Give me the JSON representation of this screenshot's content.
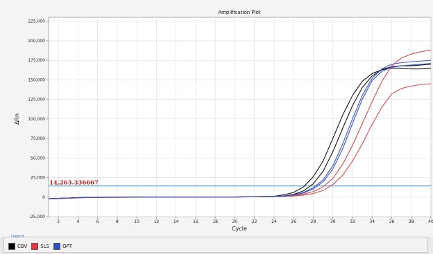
{
  "chart_data": {
    "type": "line",
    "title": "Amplification Plot",
    "xlabel": "Cycle",
    "ylabel": "ΔRn",
    "xlim": [
      1,
      40
    ],
    "ylim": [
      -25000,
      230000
    ],
    "x_ticks": [
      2,
      4,
      6,
      8,
      10,
      12,
      14,
      16,
      18,
      20,
      22,
      24,
      26,
      28,
      30,
      32,
      34,
      36,
      38,
      40
    ],
    "y_ticks": [
      -25000,
      0,
      25000,
      50000,
      75000,
      100000,
      125000,
      150000,
      175000,
      200000,
      225000
    ],
    "y_tick_labels": [
      "-25,000",
      "0",
      "25,000",
      "50,000",
      "75,000",
      "100,000",
      "125,000",
      "150,000",
      "175,000",
      "200,000",
      "225,000"
    ],
    "grid": true,
    "threshold": {
      "value": 14263.336667,
      "label": "14,263.336667",
      "color": "#5aa0d6"
    },
    "legend": {
      "title": "Legend",
      "entries": [
        {
          "label": "CBV",
          "color": "#000000"
        },
        {
          "label": "SLS",
          "color": "#e23a3a"
        },
        {
          "label": "OPT",
          "color": "#2b4fc6"
        }
      ]
    },
    "series": [
      {
        "group": "CBV",
        "color": "#111111",
        "x": [
          1,
          5,
          10,
          15,
          20,
          24,
          25,
          26,
          27,
          28,
          29,
          30,
          31,
          32,
          33,
          34,
          35,
          36,
          37,
          38,
          39,
          40
        ],
        "values": [
          -2000,
          -300,
          0,
          0,
          200,
          1000,
          3000,
          6000,
          13000,
          26000,
          46000,
          75000,
          105000,
          130000,
          148000,
          158000,
          163000,
          165000,
          165000,
          164000,
          164000,
          165000
        ]
      },
      {
        "group": "CBV",
        "color": "#111111",
        "x": [
          1,
          5,
          10,
          15,
          20,
          24,
          25,
          26,
          27,
          28,
          29,
          30,
          31,
          32,
          33,
          34,
          35,
          36,
          37,
          38,
          39,
          40
        ],
        "values": [
          -2000,
          -300,
          0,
          0,
          200,
          600,
          1500,
          3500,
          8000,
          17000,
          33000,
          58000,
          88000,
          117000,
          140000,
          155000,
          163000,
          167000,
          168000,
          168000,
          169000,
          170000
        ]
      },
      {
        "group": "SLS",
        "color": "#d84a4a",
        "x": [
          1,
          5,
          10,
          15,
          20,
          25,
          26,
          27,
          28,
          29,
          30,
          31,
          32,
          33,
          34,
          35,
          36,
          37,
          38,
          39,
          40
        ],
        "values": [
          -2500,
          -500,
          -200,
          -100,
          100,
          1000,
          2000,
          3800,
          7000,
          13000,
          24000,
          42000,
          66000,
          94000,
          122000,
          148000,
          168000,
          178000,
          183000,
          186000,
          188000
        ]
      },
      {
        "group": "SLS",
        "color": "#d84a4a",
        "x": [
          1,
          5,
          10,
          15,
          20,
          25,
          26,
          27,
          28,
          29,
          30,
          31,
          32,
          33,
          34,
          35,
          36,
          37,
          38,
          39,
          40
        ],
        "values": [
          -2500,
          -500,
          -200,
          -100,
          100,
          800,
          1400,
          2500,
          4500,
          8500,
          16000,
          28000,
          46000,
          68000,
          93000,
          115000,
          132000,
          139000,
          142000,
          144000,
          145000
        ]
      },
      {
        "group": "OPT",
        "color": "#3a55c8",
        "x": [
          1,
          5,
          10,
          15,
          20,
          25,
          26,
          27,
          28,
          29,
          30,
          31,
          32,
          33,
          34,
          35,
          36,
          37,
          38,
          39,
          40
        ],
        "values": [
          -2000,
          -400,
          -100,
          0,
          200,
          1300,
          3000,
          6000,
          12000,
          22000,
          40000,
          68000,
          100000,
          130000,
          152000,
          164000,
          170000,
          172000,
          173000,
          174000,
          175000
        ]
      },
      {
        "group": "OPT",
        "color": "#3a55c8",
        "x": [
          1,
          5,
          10,
          15,
          20,
          25,
          26,
          27,
          28,
          29,
          30,
          31,
          32,
          33,
          34,
          35,
          36,
          37,
          38,
          39,
          40
        ],
        "values": [
          -2000,
          -400,
          -100,
          0,
          200,
          1100,
          2600,
          5200,
          10500,
          19500,
          36000,
          62000,
          94000,
          125000,
          149000,
          161000,
          166000,
          168000,
          169000,
          170000,
          171000
        ]
      }
    ]
  }
}
